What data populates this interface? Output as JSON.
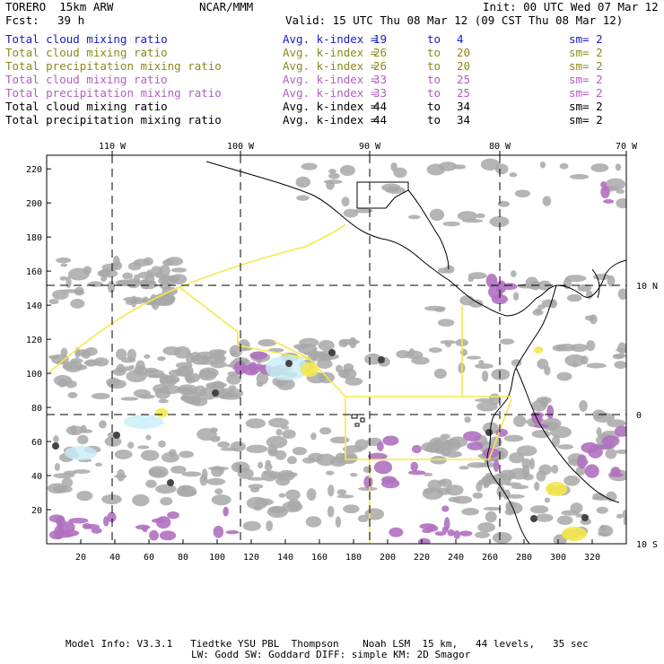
{
  "header": {
    "model": "TORERO  15km ARW",
    "org": "NCAR/MMM",
    "init": "Init: 00 UTC Wed 07 Mar 12",
    "fcst_label": "Fcst:",
    "fcst_value": "39 h",
    "valid": "Valid: 15 UTC Thu 08 Mar 12 (09 CST Thu 08 Mar 12)"
  },
  "colors": {
    "blue": "#1a1acc",
    "olive": "#8a8a1e",
    "purple": "#b060c0",
    "black": "#000000",
    "cloud_gray": "#a8a8a8",
    "precip_purple": "#b070c0",
    "yellow_contour": "#f5e84a",
    "light_cyan": "#c8eef8"
  },
  "legend": [
    {
      "field": "Total cloud mixing ratio",
      "k_label": "Avg. k-index =",
      "a": "19",
      "to": "to",
      "b": "4",
      "sm": "sm= 2",
      "color": "#1a1acc"
    },
    {
      "field": "Total cloud mixing ratio",
      "k_label": "Avg. k-index =",
      "a": "26",
      "to": "to",
      "b": "20",
      "sm": "sm= 2",
      "color": "#8a8a1e"
    },
    {
      "field": "Total precipitation mixing ratio",
      "k_label": "Avg. k-index =",
      "a": "26",
      "to": "to",
      "b": "20",
      "sm": "sm= 2",
      "color": "#8a8a1e"
    },
    {
      "field": "Total cloud mixing ratio",
      "k_label": "Avg. k-index =",
      "a": "33",
      "to": "to",
      "b": "25",
      "sm": "sm= 2",
      "color": "#b060c0"
    },
    {
      "field": "Total precipitation mixing ratio",
      "k_label": "Avg. k-index =",
      "a": "33",
      "to": "to",
      "b": "25",
      "sm": "sm= 2",
      "color": "#b060c0"
    },
    {
      "field": "Total cloud mixing ratio",
      "k_label": "Avg. k-index =",
      "a": "44",
      "to": "to",
      "b": "34",
      "sm": "sm= 2",
      "color": "#000000"
    },
    {
      "field": "Total precipitation mixing ratio",
      "k_label": "Avg. k-index =",
      "a": "44",
      "to": "to",
      "b": "34",
      "sm": "sm= 2",
      "color": "#000000"
    }
  ],
  "map": {
    "lon_labels": [
      "110 W",
      "100 W",
      "90 W",
      "80 W",
      "70 W"
    ],
    "lat_labels": [
      "10 N",
      "0",
      "10 S"
    ],
    "x_ticks": [
      "20",
      "40",
      "60",
      "80",
      "100",
      "120",
      "140",
      "160",
      "180",
      "200",
      "220",
      "240",
      "260",
      "280",
      "300",
      "320"
    ],
    "y_ticks": [
      "20",
      "40",
      "60",
      "80",
      "100",
      "120",
      "140",
      "160",
      "180",
      "200",
      "220"
    ]
  },
  "footer": {
    "line1": "Model Info: V3.3.1   Tiedtke YSU PBL  Thompson    Noah LSM  15 km,   44 levels,   35 sec",
    "line2": "LW: Godd SW: Goddard DIFF: simple KM: 2D Smagor"
  }
}
